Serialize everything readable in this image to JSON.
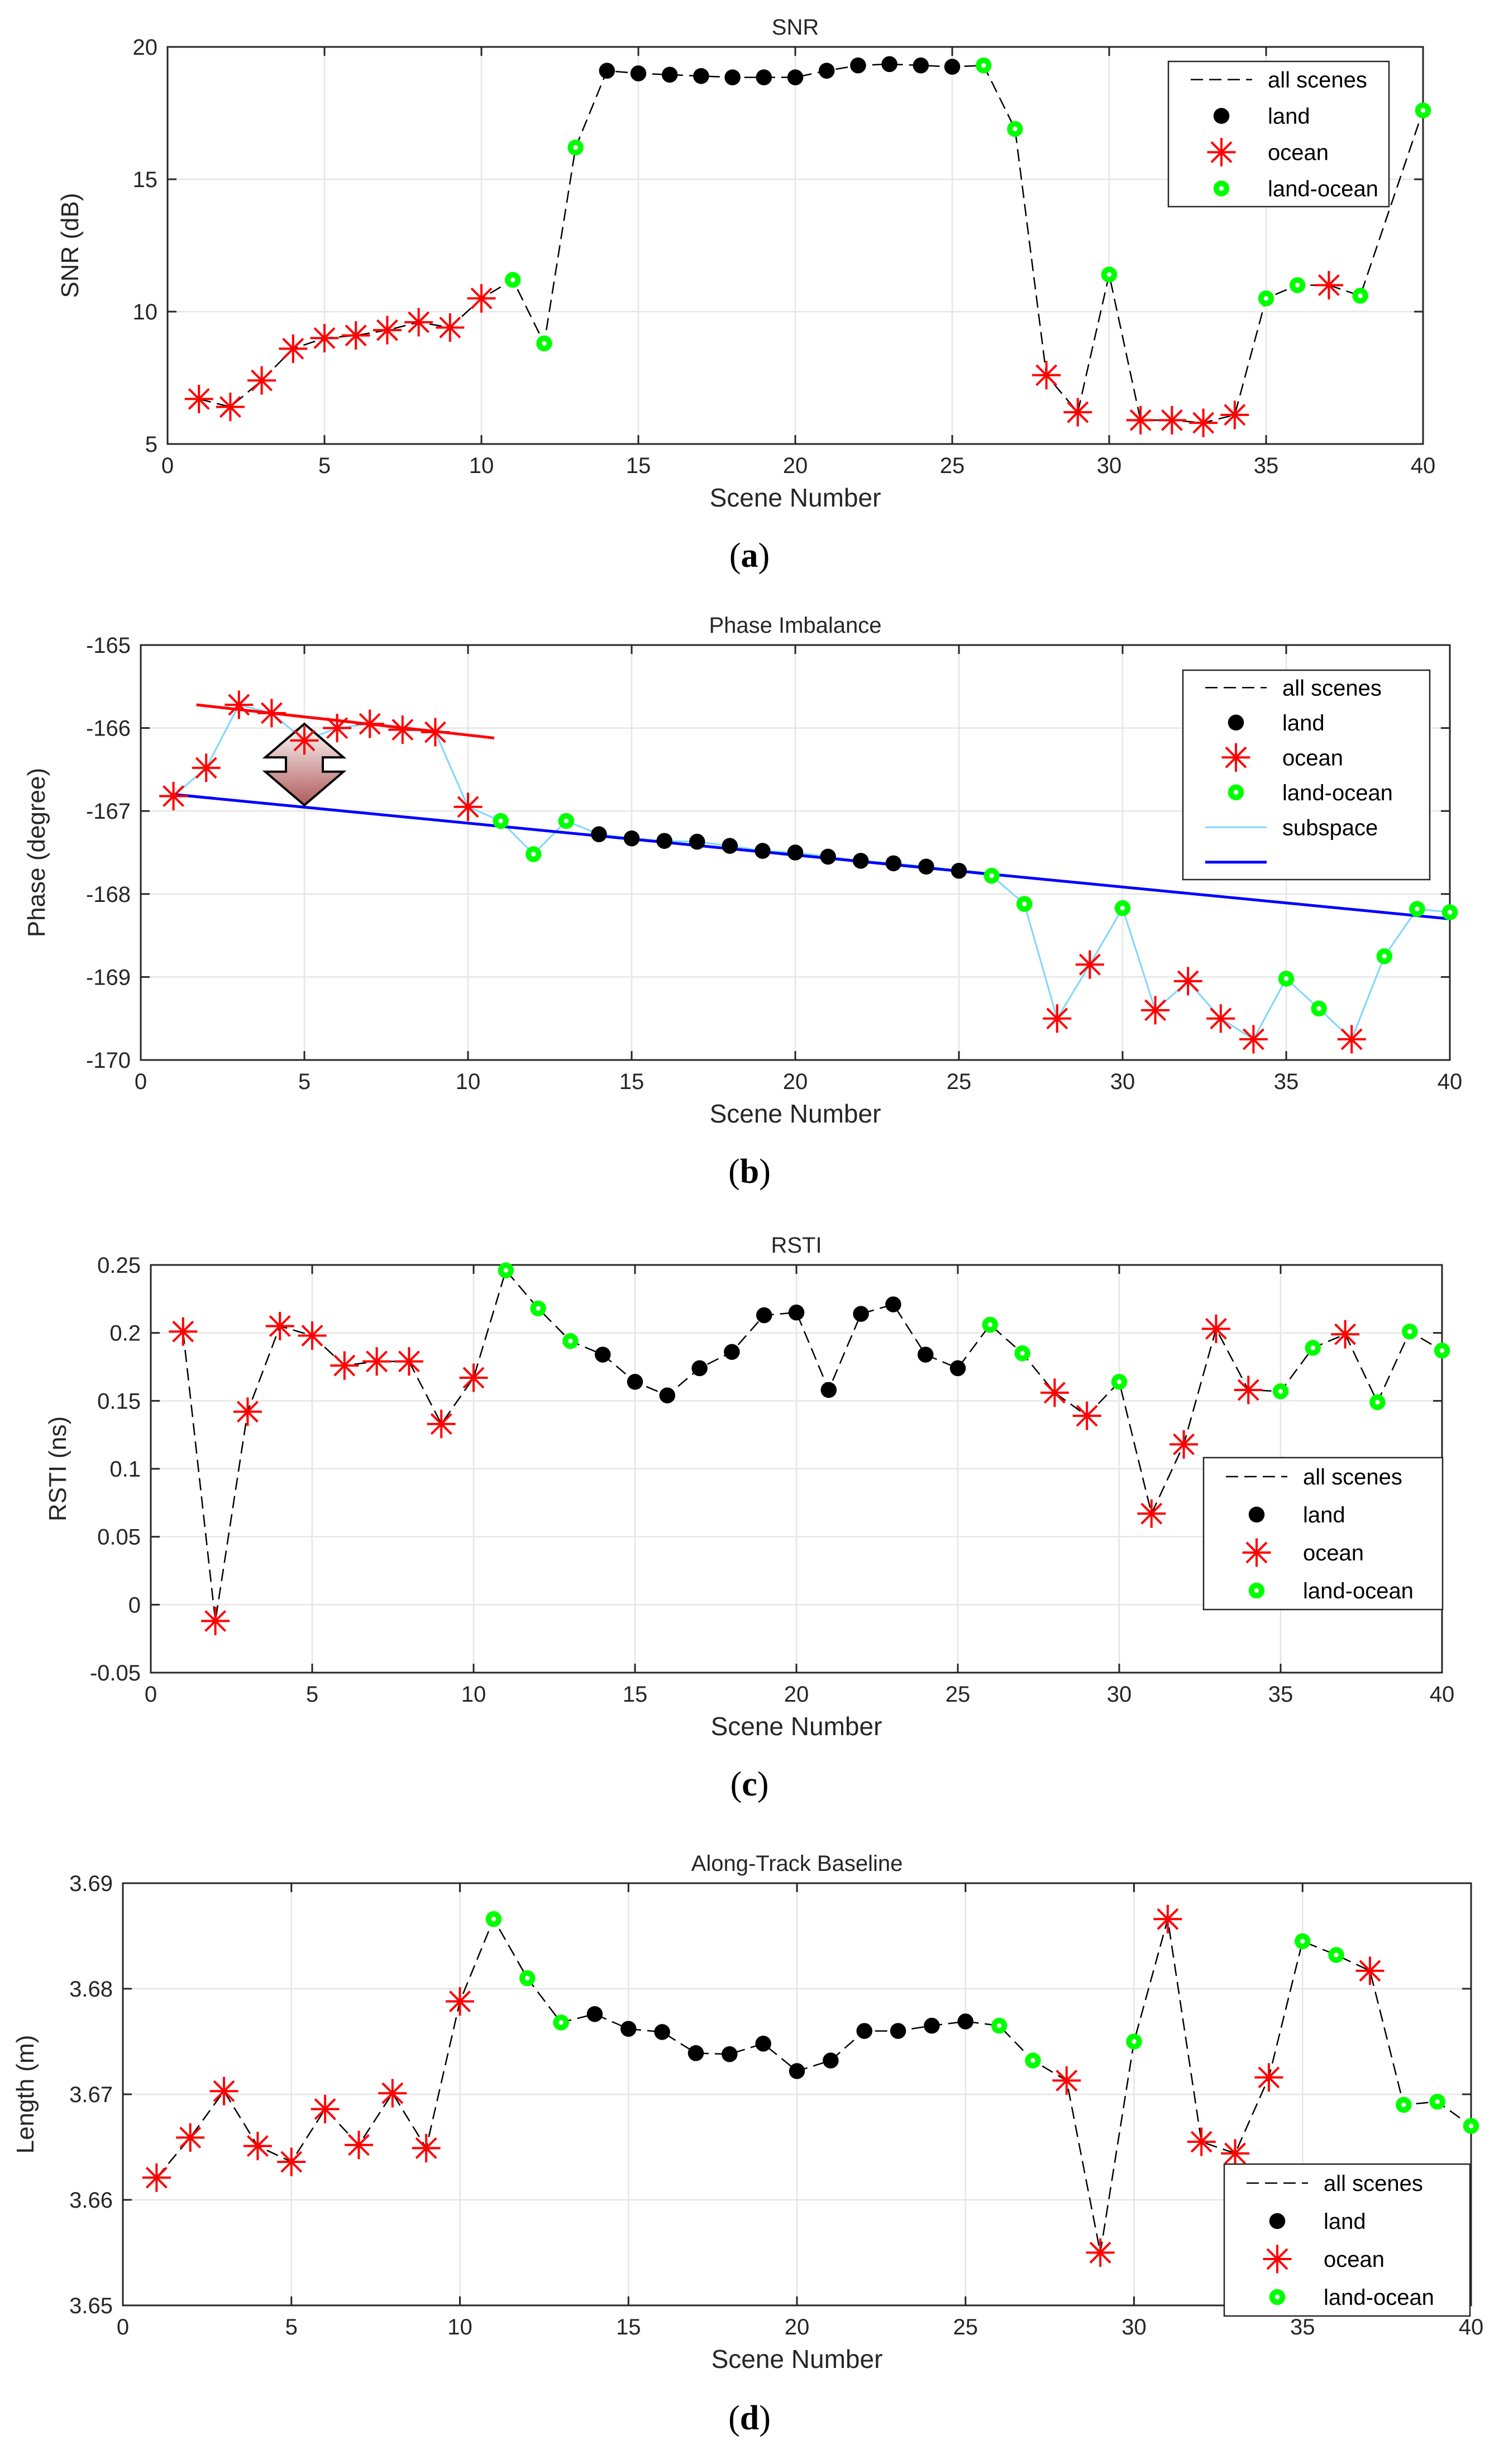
{
  "figure": {
    "colors": {
      "land": "#000000",
      "ocean": "#ff0000",
      "land_ocean": "#00ff00",
      "subspace": "#80d8ff",
      "fit": "#0000ff",
      "red_fit": "#ff0000"
    }
  },
  "chart_data": [
    {
      "id": "a",
      "type": "line",
      "caption": "a",
      "title": "SNR",
      "xlabel": "Scene Number",
      "ylabel": "SNR (dB)",
      "xlim": [
        0,
        40
      ],
      "ylim": [
        5,
        20
      ],
      "xticks": [
        0,
        5,
        10,
        15,
        20,
        25,
        30,
        35,
        40
      ],
      "yticks": [
        5,
        10,
        15,
        20
      ],
      "grid": true,
      "legend_position": "top-right",
      "legend": [
        "all scenes",
        "land",
        "ocean",
        "land-ocean"
      ],
      "scenes": [
        1,
        2,
        3,
        4,
        5,
        6,
        7,
        8,
        9,
        10,
        11,
        12,
        13,
        14,
        15,
        16,
        17,
        18,
        19,
        20,
        21,
        22,
        23,
        24,
        25,
        26,
        27,
        28,
        29,
        30,
        31,
        32,
        33,
        34,
        35,
        36,
        37,
        38,
        39,
        40
      ],
      "values": [
        6.7,
        6.4,
        7.4,
        8.6,
        9.0,
        9.1,
        9.3,
        9.6,
        9.4,
        10.5,
        11.2,
        8.8,
        16.2,
        19.1,
        19.0,
        18.95,
        18.9,
        18.85,
        18.85,
        18.85,
        19.1,
        19.3,
        19.35,
        19.3,
        19.25,
        19.3,
        16.9,
        7.6,
        6.2,
        11.4,
        5.9,
        5.9,
        5.8,
        6.1,
        10.5,
        11.0,
        11.0,
        10.6,
        null,
        17.6
      ],
      "classes": [
        "ocean",
        "ocean",
        "ocean",
        "ocean",
        "ocean",
        "ocean",
        "ocean",
        "ocean",
        "ocean",
        "ocean",
        "land-ocean",
        "land-ocean",
        "land-ocean",
        "land",
        "land",
        "land",
        "land",
        "land",
        "land",
        "land",
        "land",
        "land",
        "land",
        "land",
        "land",
        "land-ocean",
        "land-ocean",
        "ocean",
        "ocean",
        "land-ocean",
        "ocean",
        "ocean",
        "ocean",
        "ocean",
        "land-ocean",
        "land-ocean",
        "ocean",
        "land-ocean",
        "land-ocean",
        "land-ocean"
      ]
    },
    {
      "id": "b",
      "type": "line",
      "caption": "b",
      "title": "Phase Imbalance",
      "xlabel": "Scene Number",
      "ylabel": "Phase (degree)",
      "xlim": [
        0,
        40
      ],
      "ylim": [
        -170,
        -165
      ],
      "xticks": [
        0,
        5,
        10,
        15,
        20,
        25,
        30,
        35,
        40
      ],
      "yticks": [
        -170,
        -169,
        -168,
        -167,
        -166,
        -165
      ],
      "grid": true,
      "legend_position": "top-right",
      "legend": [
        "all scenes",
        "land",
        "ocean",
        "land-ocean",
        "subspace",
        ""
      ],
      "scenes": [
        1,
        2,
        3,
        4,
        5,
        6,
        7,
        8,
        9,
        10,
        11,
        12,
        13,
        14,
        15,
        16,
        17,
        18,
        19,
        20,
        21,
        22,
        23,
        24,
        25,
        26,
        27,
        28,
        29,
        30,
        31,
        32,
        33,
        34,
        35,
        36,
        37,
        38,
        39,
        40
      ],
      "values": [
        -166.82,
        -166.48,
        -165.72,
        -165.82,
        -166.15,
        -166.0,
        -165.95,
        -166.02,
        -166.05,
        -166.95,
        -167.12,
        -167.52,
        -167.12,
        -167.28,
        -167.33,
        -167.36,
        -167.37,
        -167.42,
        -167.48,
        -167.5,
        -167.55,
        -167.6,
        -167.63,
        -167.67,
        -167.72,
        -167.78,
        -168.12,
        -169.5,
        -168.85,
        -168.17,
        -169.4,
        -169.05,
        -169.5,
        -169.75,
        -169.02,
        -169.38,
        -169.75,
        -168.75,
        -168.18,
        -168.22
      ],
      "classes": [
        "ocean",
        "ocean",
        "ocean",
        "ocean",
        "ocean",
        "ocean",
        "ocean",
        "ocean",
        "ocean",
        "ocean",
        "land-ocean",
        "land-ocean",
        "land-ocean",
        "land",
        "land",
        "land",
        "land",
        "land",
        "land",
        "land",
        "land",
        "land",
        "land",
        "land",
        "land",
        "land-ocean",
        "land-ocean",
        "ocean",
        "ocean",
        "land-ocean",
        "ocean",
        "ocean",
        "ocean",
        "ocean",
        "land-ocean",
        "land-ocean",
        "ocean",
        "land-ocean",
        "land-ocean",
        "land-ocean"
      ],
      "fit_lines": [
        {
          "color": "#0000ff",
          "x": [
            1,
            40
          ],
          "y": [
            -166.8,
            -168.3
          ]
        },
        {
          "color": "#ff0000",
          "x": [
            1.7,
            10.8
          ],
          "y": [
            -165.72,
            -166.12
          ]
        }
      ],
      "annotation": {
        "type": "double-arrow",
        "x": 5,
        "y_top": -165.95,
        "y_bottom": -166.93
      }
    },
    {
      "id": "c",
      "type": "line",
      "caption": "c",
      "title": "RSTI",
      "xlabel": "Scene Number",
      "ylabel": "RSTI (ns)",
      "xlim": [
        0,
        40
      ],
      "ylim": [
        -0.05,
        0.25
      ],
      "xticks": [
        0,
        5,
        10,
        15,
        20,
        25,
        30,
        35,
        40
      ],
      "yticks": [
        -0.05,
        0,
        0.05,
        0.1,
        0.15,
        0.2,
        0.25
      ],
      "ytick_labels": [
        "-0.05",
        "0",
        "0.05",
        "0.1",
        "0.15",
        "0.2",
        "0.25"
      ],
      "grid": true,
      "legend_position": "bottom-right",
      "legend": [
        "all scenes",
        "land",
        "ocean",
        "land-ocean"
      ],
      "scenes": [
        1,
        2,
        3,
        4,
        5,
        6,
        7,
        8,
        9,
        10,
        11,
        12,
        13,
        14,
        15,
        16,
        17,
        18,
        19,
        20,
        21,
        22,
        23,
        24,
        25,
        26,
        27,
        28,
        29,
        30,
        31,
        32,
        33,
        34,
        35,
        36,
        37,
        38,
        39,
        40
      ],
      "values": [
        0.201,
        -0.012,
        0.142,
        0.205,
        0.198,
        0.176,
        0.179,
        0.179,
        0.133,
        0.167,
        0.246,
        0.218,
        0.194,
        0.184,
        0.164,
        0.154,
        0.174,
        0.186,
        0.213,
        0.215,
        0.158,
        0.214,
        0.221,
        0.184,
        0.174,
        0.206,
        0.185,
        0.156,
        0.139,
        0.164,
        0.067,
        0.118,
        0.203,
        0.158,
        0.157,
        0.189,
        0.199,
        0.149,
        0.201,
        0.187
      ],
      "classes": [
        "ocean",
        "ocean",
        "ocean",
        "ocean",
        "ocean",
        "ocean",
        "ocean",
        "ocean",
        "ocean",
        "ocean",
        "land-ocean",
        "land-ocean",
        "land-ocean",
        "land",
        "land",
        "land",
        "land",
        "land",
        "land",
        "land",
        "land",
        "land",
        "land",
        "land",
        "land",
        "land-ocean",
        "land-ocean",
        "ocean",
        "ocean",
        "land-ocean",
        "ocean",
        "ocean",
        "ocean",
        "ocean",
        "land-ocean",
        "land-ocean",
        "ocean",
        "land-ocean",
        "land-ocean",
        "land-ocean"
      ]
    },
    {
      "id": "d",
      "type": "line",
      "caption": "d",
      "title": "Along-Track Baseline",
      "xlabel": "Scene Number",
      "ylabel": "Length (m)",
      "xlim": [
        0,
        40
      ],
      "ylim": [
        3.65,
        3.69
      ],
      "xticks": [
        0,
        5,
        10,
        15,
        20,
        25,
        30,
        35,
        40
      ],
      "yticks": [
        3.65,
        3.66,
        3.67,
        3.68,
        3.69
      ],
      "ytick_labels": [
        "3.65",
        "3.66",
        "3.67",
        "3.68",
        "3.69"
      ],
      "grid": true,
      "legend_position": "bottom-right",
      "legend": [
        "all scenes",
        "land",
        "ocean",
        "land-ocean"
      ],
      "scenes": [
        1,
        2,
        3,
        4,
        5,
        6,
        7,
        8,
        9,
        10,
        11,
        12,
        13,
        14,
        15,
        16,
        17,
        18,
        19,
        20,
        21,
        22,
        23,
        24,
        25,
        26,
        27,
        28,
        29,
        30,
        31,
        32,
        33,
        34,
        35,
        36,
        37,
        38,
        39,
        40
      ],
      "values": [
        3.6621,
        3.6659,
        3.6703,
        3.6651,
        3.6636,
        3.6686,
        3.6652,
        3.6701,
        3.6649,
        3.6788,
        3.6866,
        3.681,
        3.6768,
        3.6776,
        3.6762,
        3.6759,
        3.6739,
        3.6738,
        3.6748,
        3.6722,
        3.6732,
        3.676,
        3.676,
        3.6765,
        3.6769,
        3.6765,
        3.6732,
        3.6713,
        3.655,
        3.675,
        3.6866,
        3.6655,
        3.6644,
        3.6716,
        3.6845,
        3.6832,
        3.6817,
        3.669,
        3.6693,
        3.667
      ],
      "classes": [
        "ocean",
        "ocean",
        "ocean",
        "ocean",
        "ocean",
        "ocean",
        "ocean",
        "ocean",
        "ocean",
        "ocean",
        "land-ocean",
        "land-ocean",
        "land-ocean",
        "land",
        "land",
        "land",
        "land",
        "land",
        "land",
        "land",
        "land",
        "land",
        "land",
        "land",
        "land",
        "land-ocean",
        "land-ocean",
        "ocean",
        "ocean",
        "land-ocean",
        "ocean",
        "ocean",
        "ocean",
        "ocean",
        "land-ocean",
        "land-ocean",
        "ocean",
        "land-ocean",
        "land-ocean",
        "land-ocean"
      ]
    }
  ]
}
